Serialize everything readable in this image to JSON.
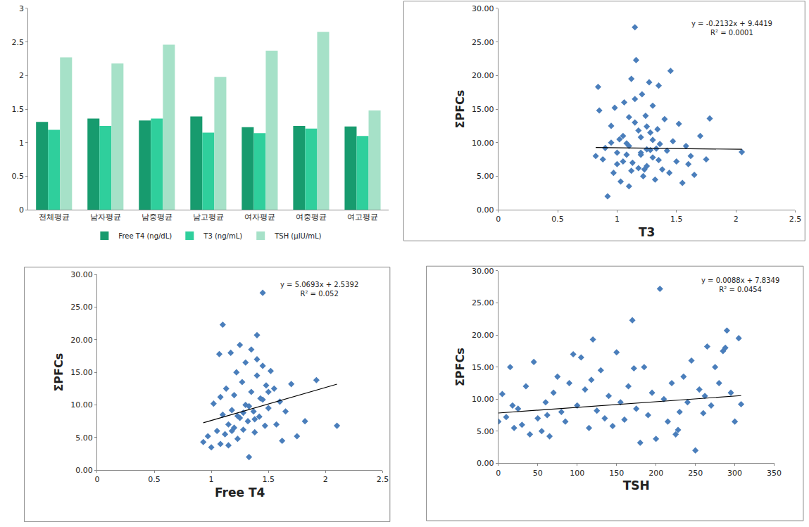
{
  "chart_data": [
    {
      "type": "bar",
      "categories": [
        "전체평균",
        "남자평균",
        "남중평균",
        "남고평균",
        "여자평균",
        "여중평균",
        "여고평균"
      ],
      "series": [
        {
          "name": "Free T4 (ng/dL)",
          "color": "#179b6e",
          "values": [
            1.31,
            1.36,
            1.33,
            1.39,
            1.23,
            1.25,
            1.24
          ]
        },
        {
          "name": "T3 (ng/mL)",
          "color": "#2fcf9c",
          "values": [
            1.19,
            1.25,
            1.36,
            1.15,
            1.14,
            1.21,
            1.1
          ]
        },
        {
          "name": "TSH (μIU/mL)",
          "color": "#a6e1c8",
          "values": [
            2.27,
            2.18,
            2.46,
            1.98,
            2.37,
            2.65,
            1.48
          ]
        }
      ],
      "ylim": [
        0,
        3
      ],
      "yticks": [
        0,
        0.5,
        1,
        1.5,
        2,
        2.5,
        3
      ],
      "grid": false,
      "legend": "bottom"
    },
    {
      "type": "scatter",
      "x_label": "T3",
      "y_label": "ΣPFCs",
      "color": "#4a7ebb",
      "marker": "diamond",
      "x": [
        0.82,
        0.84,
        0.85,
        0.88,
        0.9,
        0.92,
        0.95,
        0.97,
        0.98,
        1.0,
        1.02,
        1.03,
        1.05,
        1.06,
        1.08,
        1.1,
        1.1,
        1.12,
        1.13,
        1.15,
        1.15,
        1.16,
        1.18,
        1.2,
        1.2,
        1.21,
        1.22,
        1.24,
        1.25,
        1.25,
        1.27,
        1.28,
        1.3,
        1.3,
        1.32,
        1.34,
        1.35,
        1.36,
        1.38,
        1.4,
        1.42,
        1.44,
        1.45,
        1.47,
        1.5,
        1.52,
        1.55,
        1.58,
        1.6,
        1.62,
        1.65,
        1.7,
        1.75,
        1.78,
        2.05,
        0.95,
        1.05,
        1.1,
        1.18,
        1.23,
        1.28,
        1.33,
        1.12,
        1.0,
        1.15,
        1.25,
        1.35,
        1.08,
        1.2,
        1.3
      ],
      "y": [
        8.0,
        18.3,
        14.8,
        7.5,
        9.2,
        2.0,
        12.5,
        5.5,
        15.2,
        6.8,
        10.5,
        4.2,
        11.0,
        16.0,
        8.2,
        9.5,
        3.5,
        19.5,
        7.0,
        27.2,
        13.0,
        22.3,
        6.2,
        10.8,
        8.5,
        17.2,
        5.0,
        14.0,
        9.0,
        6.5,
        19.0,
        11.5,
        7.8,
        15.5,
        4.5,
        12.0,
        18.5,
        9.8,
        6.0,
        13.5,
        8.8,
        5.5,
        20.7,
        10.2,
        7.2,
        12.8,
        4.0,
        9.5,
        6.8,
        8.0,
        5.2,
        11.0,
        7.5,
        13.6,
        8.6,
        10.0,
        7.2,
        13.8,
        11.8,
        6.0,
        8.9,
        9.1,
        5.8,
        8.5,
        16.5,
        12.4,
        7.4,
        9.9,
        8.2,
        10.4
      ],
      "trendline": {
        "slope": -0.2132,
        "intercept": 9.4419,
        "equation": "y = -0.2132x + 9.4419",
        "r_squared_label": "R² = 0.0001"
      },
      "xlim": [
        0,
        2.5
      ],
      "xticks": [
        0,
        0.5,
        1,
        1.5,
        2,
        2.5
      ],
      "ylim": [
        0,
        30
      ],
      "yticks": [
        {
          "value": 0,
          "label": "0.00"
        },
        {
          "value": 5,
          "label": "5.00"
        },
        {
          "value": 10,
          "label": "10.00"
        },
        {
          "value": 15,
          "label": "15.00"
        },
        {
          "value": 20,
          "label": "20.00"
        },
        {
          "value": 25,
          "label": "25.00"
        },
        {
          "value": 30,
          "label": "30.00"
        }
      ],
      "grid": false
    },
    {
      "type": "scatter",
      "x_label": "Free T4",
      "y_label": "ΣPFCs",
      "color": "#4a7ebb",
      "marker": "diamond",
      "x": [
        0.93,
        0.97,
        1.0,
        1.02,
        1.05,
        1.07,
        1.08,
        1.1,
        1.1,
        1.12,
        1.13,
        1.15,
        1.15,
        1.17,
        1.18,
        1.2,
        1.2,
        1.22,
        1.23,
        1.25,
        1.25,
        1.27,
        1.28,
        1.3,
        1.3,
        1.32,
        1.33,
        1.35,
        1.35,
        1.37,
        1.38,
        1.4,
        1.4,
        1.42,
        1.43,
        1.45,
        1.45,
        1.47,
        1.48,
        1.5,
        1.52,
        1.55,
        1.57,
        1.6,
        1.62,
        1.65,
        1.7,
        1.75,
        1.82,
        1.92,
        2.1,
        1.45,
        1.38,
        1.28,
        1.18,
        1.08,
        1.5,
        1.33,
        1.23,
        1.4
      ],
      "y": [
        4.3,
        5.2,
        3.5,
        10.2,
        6.0,
        17.8,
        4.0,
        8.5,
        22.3,
        5.5,
        12.5,
        7.0,
        3.8,
        18.0,
        9.2,
        6.5,
        11.5,
        15.0,
        4.8,
        8.0,
        19.2,
        13.5,
        6.2,
        10.0,
        16.5,
        7.5,
        2.0,
        12.0,
        18.5,
        9.0,
        5.8,
        14.5,
        20.7,
        8.2,
        11.0,
        27.2,
        16.0,
        6.8,
        13.0,
        9.5,
        15.2,
        12.5,
        7.0,
        10.5,
        4.5,
        9.0,
        13.2,
        5.2,
        7.5,
        13.8,
        6.8,
        10.8,
        7.8,
        8.8,
        6.0,
        11.2,
        12.0,
        9.8,
        8.3,
        17.0
      ],
      "trendline": {
        "slope": 5.0693,
        "intercept": 2.5392,
        "equation": "y = 5.0693x + 2.5392",
        "r_squared_label": "R² = 0.052"
      },
      "xlim": [
        0,
        2.5
      ],
      "xticks": [
        0,
        0.5,
        1,
        1.5,
        2,
        2.5
      ],
      "ylim": [
        0,
        30
      ],
      "yticks": [
        {
          "value": 0,
          "label": "0.00"
        },
        {
          "value": 5,
          "label": "5.00"
        },
        {
          "value": 10,
          "label": "10.00"
        },
        {
          "value": 15,
          "label": "15.00"
        },
        {
          "value": 20,
          "label": "20.00"
        },
        {
          "value": 25,
          "label": "25.00"
        },
        {
          "value": 30,
          "label": "30.00"
        }
      ],
      "grid": false
    },
    {
      "type": "scatter",
      "x_label": "TSH",
      "y_label": "ΣPFCs",
      "color": "#4a7ebb",
      "marker": "diamond",
      "x": [
        0,
        5,
        10,
        15,
        20,
        25,
        30,
        35,
        40,
        45,
        50,
        55,
        60,
        65,
        70,
        75,
        80,
        85,
        90,
        95,
        100,
        105,
        110,
        115,
        120,
        125,
        130,
        135,
        140,
        145,
        150,
        155,
        160,
        165,
        170,
        175,
        180,
        185,
        190,
        195,
        200,
        205,
        210,
        215,
        220,
        225,
        230,
        235,
        240,
        245,
        250,
        255,
        260,
        265,
        270,
        275,
        280,
        285,
        290,
        295,
        300,
        305,
        308,
        18,
        62,
        118,
        172,
        228,
        262,
        288
      ],
      "y": [
        6.5,
        10.8,
        7.2,
        15.0,
        5.5,
        8.5,
        6.0,
        12.0,
        4.5,
        15.8,
        7.0,
        5.0,
        9.5,
        4.2,
        11.0,
        13.5,
        8.0,
        6.5,
        12.5,
        17.0,
        9.0,
        16.5,
        11.5,
        5.5,
        19.3,
        8.2,
        14.5,
        7.0,
        10.5,
        5.8,
        17.3,
        9.5,
        6.8,
        12.0,
        22.3,
        8.5,
        3.2,
        15.0,
        7.5,
        11.0,
        3.8,
        27.2,
        10.0,
        6.5,
        12.5,
        4.5,
        8.0,
        13.5,
        9.5,
        16.0,
        2.0,
        11.5,
        7.8,
        18.2,
        9.0,
        15.0,
        12.5,
        17.5,
        20.7,
        11.0,
        6.5,
        19.5,
        9.2,
        9.0,
        7.5,
        13.0,
        14.8,
        5.2,
        10.5,
        18.0
      ],
      "trendline": {
        "slope": 0.0088,
        "intercept": 7.8349,
        "equation": "y = 0.0088x + 7.8349",
        "r_squared_label": "R² = 0.0454"
      },
      "xlim": [
        0,
        350
      ],
      "xticks": [
        0,
        50,
        100,
        150,
        200,
        250,
        300,
        350
      ],
      "ylim": [
        0,
        30
      ],
      "yticks": [
        {
          "value": 0,
          "label": "0.00"
        },
        {
          "value": 5,
          "label": "5.00"
        },
        {
          "value": 10,
          "label": "10.00"
        },
        {
          "value": 15,
          "label": "15.00"
        },
        {
          "value": 20,
          "label": "20.00"
        },
        {
          "value": 25,
          "label": "25.00"
        },
        {
          "value": 30,
          "label": "30.00"
        }
      ],
      "grid": false
    }
  ]
}
